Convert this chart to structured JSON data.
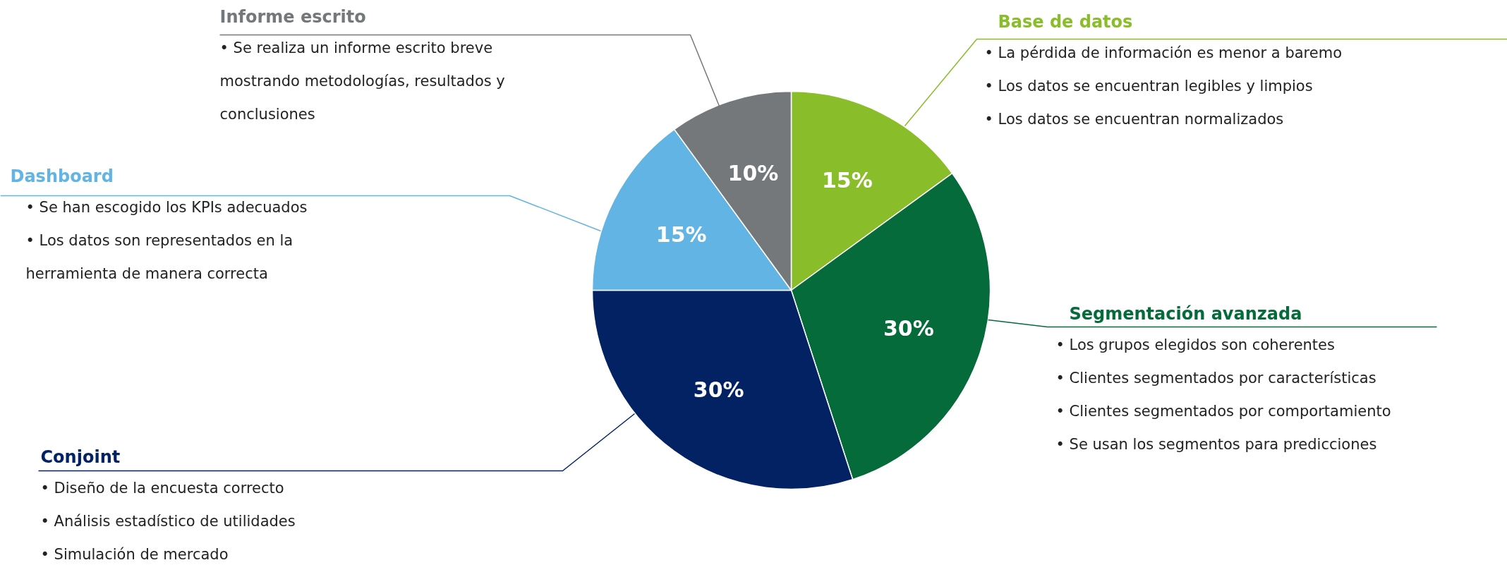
{
  "chart_data": {
    "type": "pie",
    "categories": [
      "Base de datos",
      "Segmentación avanzada",
      "Conjoint",
      "Dashboard",
      "Informe escrito"
    ],
    "values": [
      15,
      30,
      30,
      15,
      10
    ],
    "colors": [
      "#8abd2a",
      "#056b3a",
      "#022264",
      "#62b4e4",
      "#75787b"
    ],
    "value_labels": [
      "15%",
      "30%",
      "30%",
      "15%",
      "10%"
    ],
    "annotations": [
      "•  La pérdida de información es menor a baremo\n•  Los datos se encuentran legibles y limpios\n•  Los datos se encuentran normalizados",
      "•  Los grupos elegidos son coherentes\n•  Clientes segmentados por características\n•  Clientes segmentados por comportamiento\n•  Se usan los segmentos para predicciones",
      "•  Diseño de la encuesta correcto\n•  Análisis estadístico de utilidades\n•  Simulación de mercado",
      "•  Se han escogido los KPIs adecuados\n•  Los datos son representados en la\n   herramienta de manera correcta",
      "•  Se realiza un informe escrito breve\n   mostrando metodologías, resultados y\n   conclusiones"
    ]
  }
}
